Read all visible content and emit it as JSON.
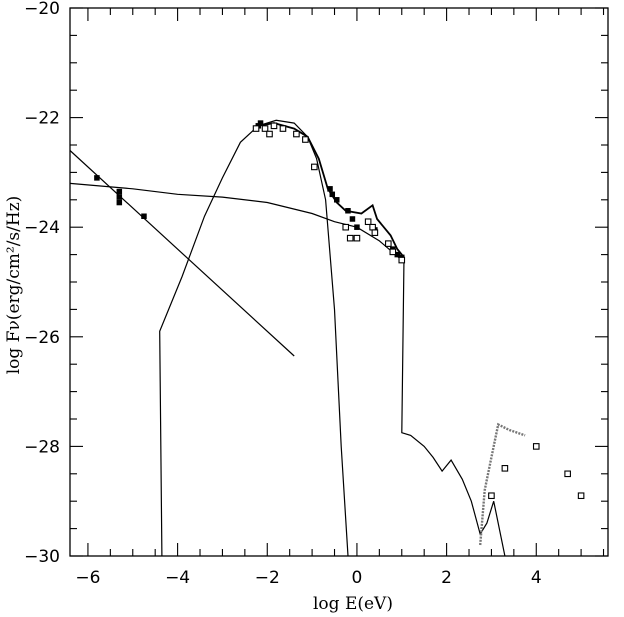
{
  "chart_data": {
    "type": "scatter",
    "xlabel": "log E(eV)",
    "ylabel": "log Fν(erg/cm²/s/Hz)",
    "xlim": [
      -6.4,
      5.6
    ],
    "ylim": [
      -30,
      -20
    ],
    "x_major_ticks": [
      -6,
      -4,
      -2,
      0,
      2,
      4
    ],
    "x_tick_labels": [
      "−6",
      "−4",
      "−2",
      "0",
      "2",
      "4"
    ],
    "y_major_ticks": [
      -30,
      -28,
      -26,
      -24,
      -22,
      -20
    ],
    "y_tick_labels": [
      "−30",
      "−28",
      "−26",
      "−24",
      "−22",
      "−20"
    ],
    "x_minor_step": 0.5,
    "y_minor_step": 0.5,
    "grid": false,
    "legend": "none",
    "filled_points": [
      [
        -5.8,
        -23.1
      ],
      [
        -5.3,
        -23.35
      ],
      [
        -5.3,
        -23.45
      ],
      [
        -5.3,
        -23.55
      ],
      [
        -4.75,
        -23.8
      ],
      [
        -2.2,
        -22.15
      ],
      [
        -2.15,
        -22.1
      ],
      [
        -0.6,
        -23.3
      ],
      [
        -0.55,
        -23.4
      ],
      [
        -0.45,
        -23.5
      ],
      [
        -0.2,
        -23.7
      ],
      [
        -0.1,
        -23.85
      ],
      [
        0.0,
        -24.0
      ],
      [
        0.4,
        -24.05
      ],
      [
        0.8,
        -24.4
      ],
      [
        0.9,
        -24.5
      ],
      [
        1.0,
        -24.55
      ]
    ],
    "open_points": [
      [
        -2.25,
        -22.2
      ],
      [
        -2.05,
        -22.2
      ],
      [
        -1.95,
        -22.3
      ],
      [
        -1.85,
        -22.15
      ],
      [
        -1.65,
        -22.2
      ],
      [
        -1.35,
        -22.3
      ],
      [
        -1.15,
        -22.4
      ],
      [
        -0.95,
        -22.9
      ],
      [
        -0.25,
        -24.0
      ],
      [
        -0.15,
        -24.2
      ],
      [
        0.0,
        -24.2
      ],
      [
        0.25,
        -23.9
      ],
      [
        0.35,
        -24.0
      ],
      [
        0.4,
        -24.1
      ],
      [
        0.7,
        -24.3
      ],
      [
        0.8,
        -24.45
      ],
      [
        1.0,
        -24.6
      ],
      [
        3.0,
        -28.9
      ],
      [
        3.3,
        -28.4
      ],
      [
        4.0,
        -28.0
      ],
      [
        4.7,
        -28.5
      ],
      [
        5.0,
        -28.9
      ]
    ],
    "curves": [
      {
        "style": "thin",
        "points": [
          [
            -6.4,
            -22.6
          ],
          [
            -1.4,
            -26.35
          ]
        ]
      },
      {
        "style": "thin",
        "points": [
          [
            -6.4,
            -23.2
          ],
          [
            -5.0,
            -23.3
          ],
          [
            -4.0,
            -23.4
          ],
          [
            -3.0,
            -23.45
          ],
          [
            -2.0,
            -23.55
          ],
          [
            -1.0,
            -23.75
          ],
          [
            -0.5,
            -23.9
          ],
          [
            0.0,
            -24.0
          ],
          [
            0.5,
            -24.25
          ],
          [
            1.0,
            -24.6
          ]
        ]
      },
      {
        "style": "thin",
        "points": [
          [
            -4.35,
            -30.0
          ],
          [
            -4.4,
            -25.9
          ],
          [
            -3.9,
            -24.9
          ],
          [
            -3.4,
            -23.8
          ],
          [
            -3.0,
            -23.1
          ],
          [
            -2.6,
            -22.45
          ],
          [
            -2.2,
            -22.15
          ],
          [
            -1.8,
            -22.05
          ],
          [
            -1.4,
            -22.1
          ],
          [
            -1.1,
            -22.35
          ],
          [
            -0.9,
            -22.75
          ],
          [
            -0.7,
            -23.5
          ],
          [
            -0.5,
            -25.5
          ],
          [
            -0.35,
            -28.0
          ],
          [
            -0.2,
            -30.0
          ]
        ]
      },
      {
        "style": "bold",
        "points": [
          [
            -2.2,
            -22.15
          ],
          [
            -1.85,
            -22.1
          ],
          [
            -1.4,
            -22.2
          ],
          [
            -1.1,
            -22.35
          ],
          [
            -0.85,
            -22.75
          ],
          [
            -0.65,
            -23.3
          ],
          [
            -0.45,
            -23.55
          ],
          [
            -0.25,
            -23.7
          ],
          [
            0.1,
            -23.75
          ],
          [
            0.35,
            -23.6
          ],
          [
            0.45,
            -23.85
          ],
          [
            0.75,
            -24.15
          ],
          [
            0.9,
            -24.4
          ],
          [
            1.05,
            -24.55
          ]
        ]
      },
      {
        "style": "thin",
        "points": [
          [
            1.05,
            -24.55
          ],
          [
            1.0,
            -27.75
          ],
          [
            1.2,
            -27.8
          ],
          [
            1.5,
            -28.0
          ],
          [
            1.7,
            -28.2
          ],
          [
            1.9,
            -28.45
          ],
          [
            2.1,
            -28.25
          ],
          [
            2.35,
            -28.6
          ],
          [
            2.55,
            -29.0
          ],
          [
            2.75,
            -29.6
          ],
          [
            2.9,
            -29.4
          ],
          [
            3.05,
            -29.0
          ],
          [
            3.3,
            -30.0
          ]
        ]
      },
      {
        "style": "band",
        "points": [
          [
            2.75,
            -29.8
          ],
          [
            2.85,
            -28.8
          ],
          [
            3.0,
            -28.2
          ],
          [
            3.15,
            -27.6
          ],
          [
            3.4,
            -27.7
          ],
          [
            3.75,
            -27.8
          ]
        ]
      }
    ]
  }
}
